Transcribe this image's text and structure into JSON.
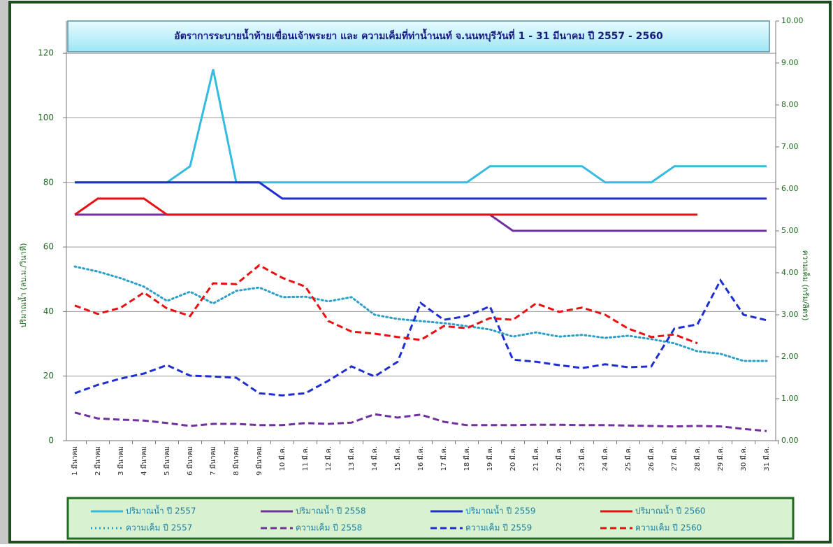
{
  "chart_data": {
    "type": "line",
    "title": "อัตราการระบายน้ำท้ายเขื่อนเจ้าพระยา และ ความเค็มที่ท่าน้ำนนท์ จ.นนทบุรีวันที่ 1 - 31 มีนาคม ปี 2557 - 2560",
    "y_label": "ปริมาณน้ำ (ลบ.ม./วินาที)",
    "y2_label": "ความเค็ม (กรัม/ลิตร)",
    "categories": [
      "1 มีนาคม",
      "2 มีนาคม",
      "3 มีนาคม",
      "4 มีนาคม",
      "5 มีนาคม",
      "6 มีนาคม",
      "7 มีนาคม",
      "8 มีนาคม",
      "9 มีนาคม",
      "10 มี.ค.",
      "11 มี.ค.",
      "12 มี.ค.",
      "13 มี.ค.",
      "14 มี.ค.",
      "15 มี.ค.",
      "16 มี.ค.",
      "17 มี.ค.",
      "18 มี.ค.",
      "19 มี.ค.",
      "20 มี.ค.",
      "21 มี.ค.",
      "22 มี.ค.",
      "23 มี.ค.",
      "24 มี.ค.",
      "25 มี.ค.",
      "26 มี.ค.",
      "27 มี.ค.",
      "28 มี.ค.",
      "29 มี.ค.",
      "30 มี.ค.",
      "31 มี.ค."
    ],
    "ylim": [
      0,
      130
    ],
    "yticks": [
      0,
      20,
      40,
      60,
      80,
      100,
      120
    ],
    "y2lim": [
      0,
      10
    ],
    "y2ticks": [
      {
        "value": 0,
        "label": "0.00"
      },
      {
        "value": 1,
        "label": "1.00"
      },
      {
        "value": 2,
        "label": "2.00"
      },
      {
        "value": 3,
        "label": "3.00"
      },
      {
        "value": 4,
        "label": "4.00"
      },
      {
        "value": 5,
        "label": "5.00"
      },
      {
        "value": 6,
        "label": "6.00"
      },
      {
        "value": 7,
        "label": "7.00"
      },
      {
        "value": 8,
        "label": "8.00"
      },
      {
        "value": 9,
        "label": "9.00"
      },
      {
        "value": 10,
        "label": "10.00"
      }
    ],
    "grid": true,
    "series": [
      {
        "name": "ปริมาณน้ำ ปี 2557",
        "color": "#33bbe0",
        "dash": "solid",
        "values": [
          80,
          80,
          80,
          80,
          80,
          85,
          115,
          80,
          80,
          80,
          80,
          80,
          80,
          80,
          80,
          80,
          80,
          80,
          85,
          85,
          85,
          85,
          85,
          80,
          80,
          80,
          85,
          85,
          85,
          85,
          85
        ]
      },
      {
        "name": "ปริมาณน้ำ ปี 2558",
        "color": "#7030a0",
        "dash": "solid",
        "values": [
          70,
          70,
          70,
          70,
          70,
          70,
          70,
          70,
          70,
          70,
          70,
          70,
          70,
          70,
          70,
          70,
          70,
          70,
          70,
          65,
          65,
          65,
          65,
          65,
          65,
          65,
          65,
          65,
          65,
          65,
          65
        ]
      },
      {
        "name": "ปริมาณน้ำ ปี 2559",
        "color": "#1f2fcf",
        "dash": "solid",
        "values": [
          80,
          80,
          80,
          80,
          80,
          80,
          80,
          80,
          80,
          75,
          75,
          75,
          75,
          75,
          75,
          75,
          75,
          75,
          75,
          75,
          75,
          75,
          75,
          75,
          75,
          75,
          75,
          75,
          75,
          75,
          75
        ]
      },
      {
        "name": "ปริมาณน้ำ ปี 2560",
        "color": "#e81010",
        "dash": "solid",
        "values": [
          70,
          75,
          75,
          75,
          70,
          70,
          70,
          70,
          70,
          70,
          70,
          70,
          70,
          70,
          70,
          70,
          70,
          70,
          70,
          70,
          70,
          70,
          70,
          70,
          70,
          70,
          70,
          70,
          null,
          null,
          null
        ]
      },
      {
        "name": "ความเค็ม ปี 2557",
        "color": "#2a9fc8",
        "dash": "dotted",
        "axis": "y2",
        "values": [
          4.15,
          4.03,
          3.87,
          3.67,
          3.33,
          3.55,
          3.27,
          3.57,
          3.65,
          3.42,
          3.43,
          3.32,
          3.42,
          3.0,
          2.9,
          2.85,
          2.8,
          2.73,
          2.65,
          2.48,
          2.58,
          2.48,
          2.52,
          2.45,
          2.5,
          2.42,
          2.32,
          2.13,
          2.07,
          1.9,
          1.9
        ]
      },
      {
        "name": "ความเค็ม ปี 2558",
        "color": "#7030a0",
        "dash": "dashed",
        "axis": "y2",
        "values": [
          0.67,
          0.53,
          0.5,
          0.48,
          0.42,
          0.35,
          0.4,
          0.4,
          0.37,
          0.37,
          0.42,
          0.4,
          0.43,
          0.63,
          0.55,
          0.62,
          0.45,
          0.37,
          0.37,
          0.37,
          0.38,
          0.38,
          0.37,
          0.37,
          0.36,
          0.35,
          0.34,
          0.35,
          0.34,
          0.28,
          0.23
        ]
      },
      {
        "name": "ความเค็ม ปี 2559",
        "color": "#1f2fcf",
        "dash": "dashed",
        "axis": "y2",
        "values": [
          1.13,
          1.33,
          1.48,
          1.6,
          1.8,
          1.55,
          1.53,
          1.5,
          1.13,
          1.08,
          1.13,
          1.43,
          1.77,
          1.53,
          1.88,
          3.28,
          2.88,
          2.97,
          3.2,
          1.93,
          1.88,
          1.8,
          1.73,
          1.82,
          1.75,
          1.77,
          2.67,
          2.77,
          3.82,
          3.0,
          2.87
        ]
      },
      {
        "name": "ความเค็ม ปี 2560",
        "color": "#e81010",
        "dash": "dashed",
        "axis": "y2",
        "values": [
          3.22,
          3.02,
          3.17,
          3.53,
          3.15,
          2.97,
          3.75,
          3.73,
          4.18,
          3.88,
          3.67,
          2.85,
          2.6,
          2.55,
          2.47,
          2.4,
          2.73,
          2.68,
          2.92,
          2.88,
          3.27,
          3.07,
          3.17,
          3.0,
          2.67,
          2.47,
          2.53,
          2.32,
          null,
          null,
          null
        ]
      }
    ]
  }
}
